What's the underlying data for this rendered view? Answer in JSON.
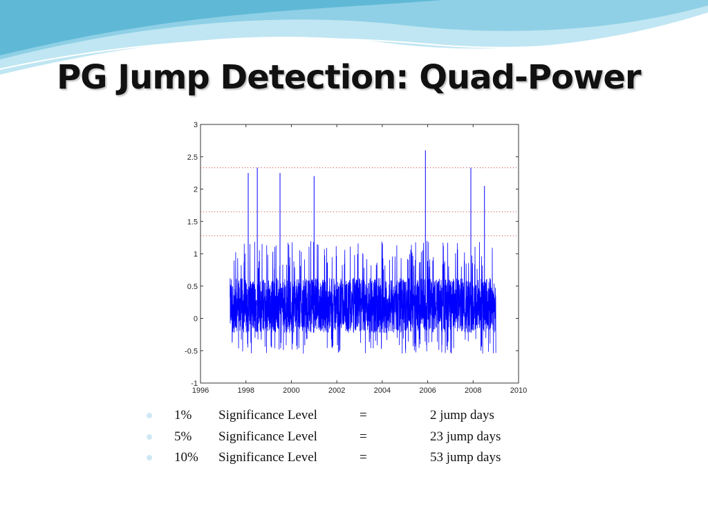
{
  "slide": {
    "title": "PG Jump Detection: Quad-Power"
  },
  "colors": {
    "series": "#0000ff",
    "threshold_lines": "#cc3333",
    "wave_light": "#bfe6f2",
    "wave_dark": "#5fb9d6"
  },
  "bullets": [
    {
      "level": "1%",
      "label": "Significance Level",
      "eq": "=",
      "value": "2 jump days"
    },
    {
      "level": "5%",
      "label": "Significance Level",
      "eq": "=",
      "value": "23 jump days"
    },
    {
      "level": "10%",
      "label": "Significance Level",
      "eq": "=",
      "value": "53 jump days"
    }
  ],
  "chart_data": {
    "type": "line",
    "title": "",
    "xlabel": "",
    "ylabel": "",
    "xlim": [
      1996,
      2010
    ],
    "ylim": [
      -1,
      3
    ],
    "x_ticks": [
      "1996",
      "1998",
      "2000",
      "2002",
      "2004",
      "2006",
      "2008",
      "2010"
    ],
    "y_ticks": [
      "-1",
      "-0.5",
      "0",
      "0.5",
      "1",
      "1.5",
      "2",
      "2.5",
      "3"
    ],
    "threshold_lines": [
      {
        "y": 2.33,
        "style": "dotted"
      },
      {
        "y": 1.65,
        "style": "dotted"
      },
      {
        "y": 1.28,
        "style": "dotted"
      }
    ],
    "series": [
      {
        "x_range": [
          1997.3,
          2009.0
        ],
        "typical_band": [
          -0.3,
          0.75
        ],
        "mean": 0.2,
        "spikes": [
          {
            "x": 1998.1,
            "y": 2.25
          },
          {
            "x": 1998.5,
            "y": 2.33
          },
          {
            "x": 1999.5,
            "y": 2.25
          },
          {
            "x": 2001.0,
            "y": 2.2
          },
          {
            "x": 2005.9,
            "y": 2.6
          },
          {
            "x": 2007.9,
            "y": 2.33
          },
          {
            "x": 2008.5,
            "y": 2.05
          }
        ]
      }
    ]
  }
}
